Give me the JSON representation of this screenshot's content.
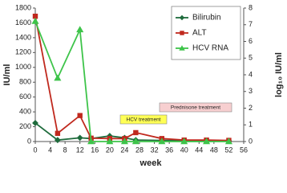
{
  "chart_data": {
    "type": "line",
    "xlabel": "week",
    "ylabel": "IU/ml",
    "y2label": "log₁₀ IU/ml",
    "x": [
      0,
      6,
      12,
      15,
      20,
      24,
      27,
      34,
      40,
      46,
      52
    ],
    "xlim": [
      0,
      56
    ],
    "xticks": [
      0,
      4,
      8,
      12,
      16,
      20,
      24,
      28,
      32,
      36,
      40,
      44,
      48,
      52,
      56
    ],
    "ylim": [
      0,
      1800
    ],
    "yticks": [
      0,
      200,
      400,
      600,
      800,
      1000,
      1200,
      1400,
      1600,
      1800
    ],
    "y2lim": [
      0,
      8
    ],
    "y2ticks": [
      0,
      1,
      2,
      3,
      4,
      5,
      6,
      7,
      8
    ],
    "grid": false,
    "legend": "upper right",
    "series": [
      {
        "name": "Bilirubin",
        "color": "#1e6b3c",
        "marker": "diamond",
        "values": [
          250,
          20,
          50,
          40,
          75,
          50,
          20,
          15,
          15,
          10,
          10
        ]
      },
      {
        "name": "ALT",
        "color": "#c0291e",
        "marker": "square",
        "values": [
          1690,
          110,
          350,
          45,
          40,
          40,
          120,
          40,
          20,
          20,
          15
        ]
      },
      {
        "name": "HCV RNA",
        "color": "#3ec44a",
        "marker": "triangle",
        "axis": "y2",
        "values": [
          7.2,
          3.8,
          6.7,
          0,
          0,
          0,
          0,
          0,
          0,
          0,
          0
        ]
      }
    ],
    "annotations": [
      {
        "text": "Prednisone treatment",
        "color": "#f7cfd0"
      },
      {
        "text": "HCV treatment",
        "color": "#ffff55"
      }
    ]
  }
}
